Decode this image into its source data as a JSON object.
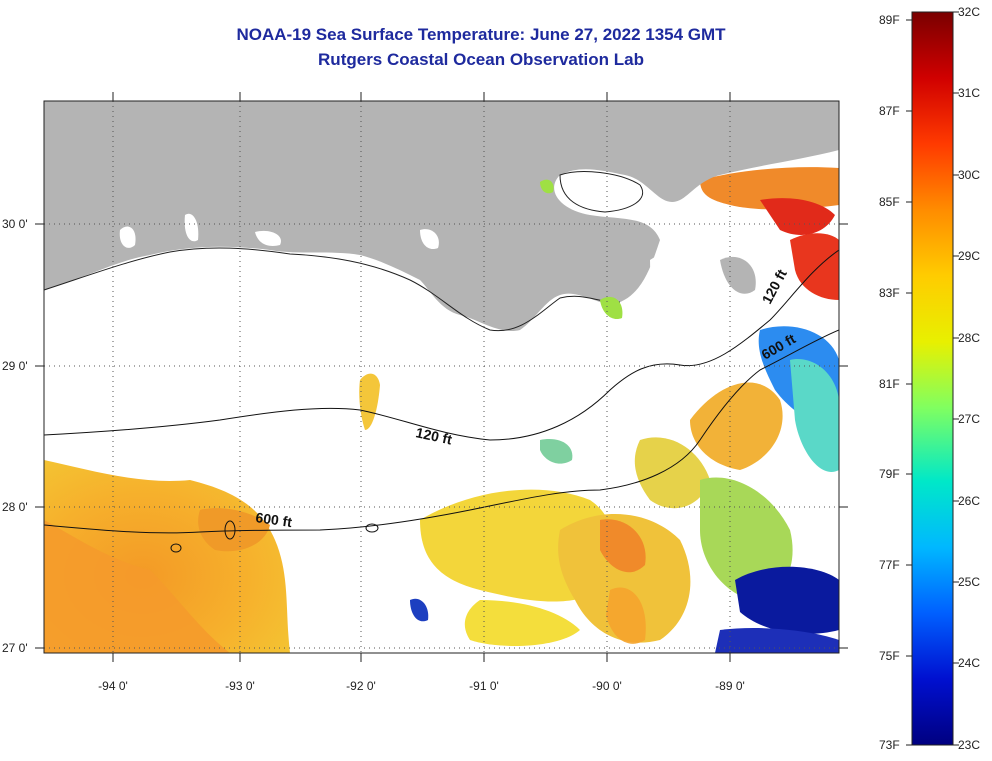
{
  "title": "NOAA-19 Sea Surface Temperature:  June 27, 2022 1354 GMT",
  "subtitle": "Rutgers Coastal Ocean Observation Lab",
  "x_axis_labels": [
    "-94 0'",
    "-93 0'",
    "-92 0'",
    "-91 0'",
    "-90 0'",
    "-89 0'"
  ],
  "y_axis_labels": [
    "30 0'",
    "29 0'",
    "28 0'",
    "27 0'"
  ],
  "contour_labels": {
    "c120_west": "120 ft",
    "c120_east": "120 ft",
    "c600_west": "600 ft",
    "c600_east": "600 ft"
  },
  "colorbar": {
    "fahrenheit": [
      "89F",
      "87F",
      "85F",
      "83F",
      "81F",
      "79F",
      "77F",
      "75F",
      "73F"
    ],
    "celsius": [
      "32C",
      "31C",
      "30C",
      "29C",
      "28C",
      "27C",
      "26C",
      "25C",
      "24C",
      "23C"
    ],
    "colors": [
      "#7a0000",
      "#d40000",
      "#ff3300",
      "#ff8800",
      "#ffcc00",
      "#f0f000",
      "#80ff40",
      "#00e0c0",
      "#00b0ff",
      "#0050ff",
      "#0000c0",
      "#000080"
    ]
  },
  "map_colors": {
    "land": "#b4b4b4",
    "cloud": "#ffffff",
    "warm_sst": "#f5a623",
    "hot_sst": "#e8361e",
    "mid_sst": "#f2e23a",
    "cool_sst": "#5ad08a",
    "cold_sst": "#1d2fb8"
  }
}
